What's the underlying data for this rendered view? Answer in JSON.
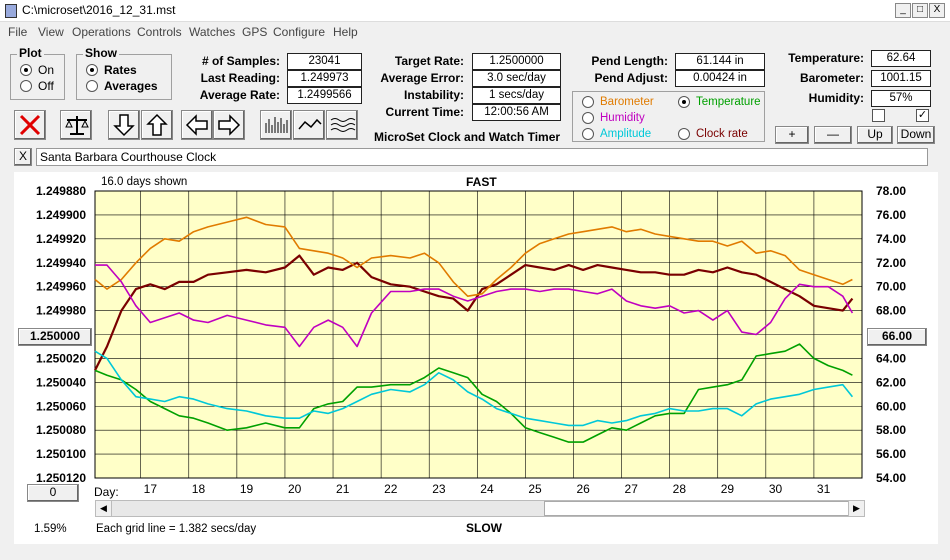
{
  "window": {
    "title": "C:\\microset\\2016_12_31.mst",
    "min": "_",
    "max": "□",
    "close": "X"
  },
  "menu": [
    "File",
    "View",
    "Operations",
    "Controls",
    "Watches",
    "GPS",
    "Configure",
    "Help"
  ],
  "plot_group": {
    "title": "Plot",
    "on": "On",
    "off": "Off",
    "selected": "On"
  },
  "show_group": {
    "title": "Show",
    "rates": "Rates",
    "averages": "Averages",
    "selected": "Rates"
  },
  "stats": {
    "samples_label": "# of Samples:",
    "samples": "23041",
    "last_label": "Last Reading:",
    "last": "1.249973",
    "avg_label": "Average Rate:",
    "avg": "1.2499566",
    "target_label": "Target Rate:",
    "target": "1.2500000",
    "err_label": "Average Error:",
    "err": "3.0 sec/day",
    "inst_label": "Instability:",
    "inst": "1 secs/day",
    "time_label": "Current Time:",
    "time": "12:00:56 AM",
    "pend_len_label": "Pend Length:",
    "pend_len": "61.144 in",
    "pend_adj_label": "Pend Adjust:",
    "pend_adj": "0.00424 in",
    "temp_label": "Temperature:",
    "temp": "62.64",
    "baro_label": "Barometer:",
    "baro": "1001.15",
    "hum_label": "Humidity:",
    "hum": "57%"
  },
  "app_name": "MicroSet Clock and Watch Timer",
  "sensor_select": {
    "barometer": "Barometer",
    "temperature": "Temperature",
    "humidity": "Humidity",
    "amplitude": "Amplitude",
    "clock_rate": "Clock rate",
    "selected": "Temperature",
    "colors": {
      "barometer": "#e07b00",
      "temperature": "#00a000",
      "humidity": "#c000c0",
      "amplitude": "#00c8d8",
      "clock_rate": "#7a0000"
    }
  },
  "adjust_buttons": {
    "plus": "+",
    "minus": "—",
    "up": "Up",
    "down": "Down"
  },
  "description_close": "X",
  "description": "Santa Barbara Courthouse Clock",
  "chart_header": {
    "days_shown": "16.0 days shown",
    "fast": "FAST",
    "slow": "SLOW",
    "grid_note": "Each grid line = 1.382 secs/day",
    "percent": "1.59%",
    "left_btn": "1.250000",
    "right_btn": "66.00",
    "bottom_btn": "0",
    "day_label": "Day:"
  },
  "chart_data": {
    "type": "line",
    "x_unit": "day",
    "xlim": [
      16.05,
      32.0
    ],
    "x_ticks": [
      17,
      18,
      19,
      20,
      21,
      22,
      23,
      24,
      25,
      26,
      27,
      28,
      29,
      30,
      31
    ],
    "y_left_ticks": [
      "1.249880",
      "1.249900",
      "1.249920",
      "1.249940",
      "1.249960",
      "1.249980",
      "1.250000",
      "1.250020",
      "1.250040",
      "1.250060",
      "1.250080",
      "1.250100",
      "1.250120"
    ],
    "y_left_range": [
      1.24988,
      1.25012
    ],
    "y_left_inverted": true,
    "y_right_ticks": [
      "78.00",
      "76.00",
      "74.00",
      "72.00",
      "70.00",
      "68.00",
      "66.00",
      "64.00",
      "62.00",
      "60.00",
      "58.00",
      "56.00",
      "54.00"
    ],
    "y_right_range": [
      54,
      78
    ],
    "grid": true,
    "background": "#ffffc8",
    "series": [
      {
        "name": "Clock rate",
        "axis": "left",
        "color": "#7a0000",
        "x": [
          16.05,
          16.3,
          16.6,
          16.9,
          17.2,
          17.5,
          17.8,
          18.1,
          18.4,
          18.8,
          19.2,
          19.6,
          20.0,
          20.3,
          20.6,
          20.9,
          21.2,
          21.5,
          21.8,
          22.2,
          22.6,
          22.9,
          23.2,
          23.5,
          23.8,
          24.1,
          24.4,
          24.7,
          25.0,
          25.3,
          25.6,
          25.9,
          26.2,
          26.5,
          26.8,
          27.1,
          27.4,
          27.7,
          28.0,
          28.3,
          28.6,
          28.9,
          29.2,
          29.5,
          29.8,
          30.1,
          30.4,
          30.7,
          31.0,
          31.3,
          31.6,
          31.8
        ],
        "y": [
          1.25003,
          1.25001,
          1.24998,
          1.249962,
          1.249958,
          1.249962,
          1.249956,
          1.249956,
          1.24995,
          1.249948,
          1.249946,
          1.249948,
          1.249944,
          1.249934,
          1.24995,
          1.249944,
          1.249946,
          1.24994,
          1.249952,
          1.249958,
          1.24996,
          1.249964,
          1.249968,
          1.24997,
          1.24998,
          1.249962,
          1.249958,
          1.24995,
          1.249942,
          1.249944,
          1.249946,
          1.249942,
          1.249946,
          1.249942,
          1.249944,
          1.249946,
          1.249948,
          1.249948,
          1.24995,
          1.24995,
          1.249946,
          1.249948,
          1.249944,
          1.249948,
          1.24995,
          1.249956,
          1.249962,
          1.249968,
          1.249976,
          1.249978,
          1.24998,
          1.24997
        ]
      },
      {
        "name": "Barometer",
        "axis": "right",
        "color": "#e07b00",
        "x": [
          16.05,
          16.3,
          16.6,
          16.9,
          17.2,
          17.5,
          17.8,
          18.1,
          18.4,
          18.8,
          19.2,
          19.6,
          20.0,
          20.3,
          20.6,
          20.9,
          21.2,
          21.5,
          21.8,
          22.2,
          22.6,
          22.9,
          23.2,
          23.5,
          23.8,
          24.1,
          24.4,
          24.7,
          25.0,
          25.3,
          25.6,
          25.9,
          26.2,
          26.5,
          26.8,
          27.1,
          27.4,
          27.7,
          28.0,
          28.3,
          28.6,
          28.9,
          29.2,
          29.5,
          29.8,
          30.1,
          30.4,
          30.7,
          31.0,
          31.3,
          31.6,
          31.8
        ],
        "y": [
          70.6,
          69.8,
          70.6,
          72.0,
          73.2,
          74.0,
          73.8,
          74.6,
          75.0,
          75.4,
          75.8,
          75.2,
          75.0,
          73.2,
          73.0,
          72.8,
          72.4,
          71.6,
          72.4,
          72.6,
          72.4,
          72.8,
          72.0,
          70.4,
          69.2,
          69.4,
          70.6,
          71.6,
          72.8,
          73.6,
          74.0,
          74.4,
          74.6,
          74.8,
          75.0,
          74.6,
          74.8,
          74.4,
          74.2,
          74.0,
          73.8,
          73.8,
          73.4,
          73.8,
          72.8,
          73.0,
          72.6,
          71.4,
          71.0,
          70.6,
          70.2,
          70.6
        ]
      },
      {
        "name": "Humidity",
        "axis": "right",
        "color": "#c000c0",
        "x": [
          16.05,
          16.3,
          16.6,
          16.9,
          17.2,
          17.5,
          17.8,
          18.1,
          18.4,
          18.8,
          19.2,
          19.6,
          20.0,
          20.3,
          20.6,
          20.9,
          21.2,
          21.5,
          21.8,
          22.2,
          22.6,
          22.9,
          23.2,
          23.5,
          23.8,
          24.1,
          24.4,
          24.7,
          25.0,
          25.3,
          25.6,
          25.9,
          26.2,
          26.5,
          26.8,
          27.1,
          27.4,
          27.7,
          28.0,
          28.3,
          28.6,
          28.9,
          29.2,
          29.5,
          29.8,
          30.1,
          30.4,
          30.7,
          31.0,
          31.3,
          31.6,
          31.8
        ],
        "y": [
          71.8,
          71.8,
          70.4,
          68.4,
          67.0,
          67.4,
          67.8,
          67.2,
          67.0,
          67.6,
          67.2,
          66.8,
          66.6,
          65.0,
          66.6,
          67.2,
          66.6,
          65.0,
          67.8,
          69.6,
          69.6,
          69.8,
          69.8,
          69.2,
          68.8,
          69.2,
          69.6,
          69.8,
          69.8,
          69.6,
          69.8,
          69.8,
          69.6,
          69.4,
          69.8,
          68.8,
          68.4,
          68.2,
          68.4,
          67.8,
          68.0,
          67.2,
          68.0,
          66.2,
          66.0,
          67.0,
          69.0,
          70.2,
          70.0,
          70.0,
          69.2,
          67.8
        ]
      },
      {
        "name": "Temperature",
        "axis": "right",
        "color": "#00a000",
        "x": [
          16.05,
          16.3,
          16.6,
          16.9,
          17.2,
          17.5,
          17.8,
          18.1,
          18.4,
          18.8,
          19.2,
          19.6,
          20.0,
          20.3,
          20.6,
          20.9,
          21.2,
          21.5,
          21.8,
          22.2,
          22.6,
          22.9,
          23.2,
          23.5,
          23.8,
          24.1,
          24.4,
          24.7,
          25.0,
          25.3,
          25.6,
          25.9,
          26.2,
          26.5,
          26.8,
          27.1,
          27.4,
          27.7,
          28.0,
          28.3,
          28.6,
          28.9,
          29.2,
          29.5,
          29.8,
          30.1,
          30.4,
          30.7,
          31.0,
          31.3,
          31.6,
          31.8
        ],
        "y": [
          63.0,
          62.6,
          62.2,
          61.4,
          60.4,
          59.8,
          59.2,
          59.0,
          58.6,
          58.0,
          58.2,
          58.6,
          58.2,
          58.2,
          59.8,
          60.2,
          60.4,
          61.6,
          61.6,
          61.8,
          61.8,
          62.4,
          63.2,
          62.8,
          62.4,
          61.0,
          60.4,
          59.4,
          58.2,
          57.8,
          57.4,
          57.0,
          57.0,
          57.6,
          58.2,
          58.0,
          58.6,
          59.2,
          59.4,
          59.4,
          61.4,
          61.6,
          61.8,
          62.2,
          64.2,
          64.4,
          64.6,
          65.2,
          64.0,
          63.4,
          63.0,
          62.6
        ]
      },
      {
        "name": "Amplitude",
        "axis": "right",
        "color": "#00c8d8",
        "x": [
          16.05,
          16.3,
          16.6,
          16.9,
          17.2,
          17.5,
          17.8,
          18.1,
          18.4,
          18.8,
          19.2,
          19.6,
          20.0,
          20.3,
          20.6,
          20.9,
          21.2,
          21.5,
          21.8,
          22.2,
          22.6,
          22.9,
          23.2,
          23.5,
          23.8,
          24.1,
          24.4,
          24.7,
          25.0,
          25.3,
          25.6,
          25.9,
          26.2,
          26.5,
          26.8,
          27.1,
          27.4,
          27.7,
          28.0,
          28.3,
          28.6,
          28.9,
          29.2,
          29.5,
          29.8,
          30.1,
          30.4,
          30.7,
          31.0,
          31.3,
          31.6,
          31.8
        ],
        "y": [
          64.6,
          64.0,
          62.2,
          60.8,
          60.6,
          60.4,
          60.8,
          60.6,
          60.2,
          59.8,
          59.6,
          59.2,
          59.0,
          59.0,
          59.6,
          59.4,
          59.8,
          60.4,
          61.0,
          61.4,
          61.2,
          61.8,
          62.8,
          62.2,
          61.2,
          60.6,
          59.8,
          59.4,
          59.0,
          58.8,
          58.6,
          58.4,
          58.4,
          58.8,
          58.6,
          58.8,
          59.2,
          59.4,
          59.8,
          59.6,
          59.6,
          59.8,
          59.8,
          59.2,
          60.2,
          60.6,
          60.8,
          61.0,
          61.4,
          61.6,
          61.8,
          60.8
        ]
      }
    ]
  }
}
